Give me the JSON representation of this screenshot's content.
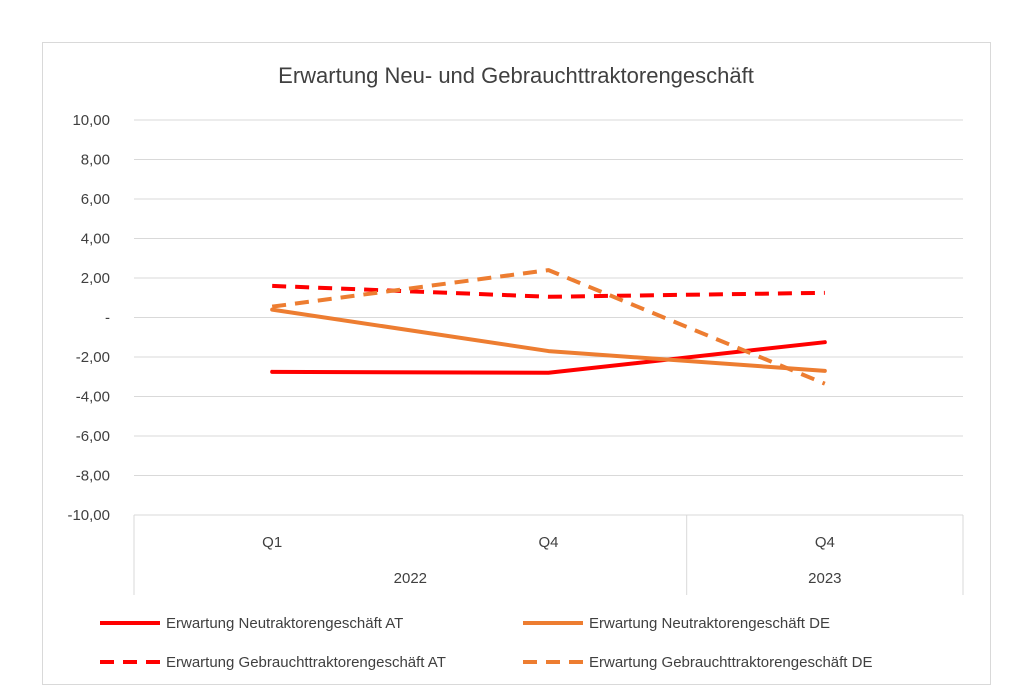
{
  "chart_data": {
    "type": "line",
    "title": "Erwartung Neu- und Gebrauchttraktorengeschäft",
    "categories": [
      {
        "label": "Q1",
        "group": "2022"
      },
      {
        "label": "Q4",
        "group": "2022"
      },
      {
        "label": "Q4",
        "group": "2023"
      }
    ],
    "groups": [
      "2022",
      "2023"
    ],
    "ylim": [
      -10,
      10
    ],
    "yticks": [
      10,
      8,
      6,
      4,
      2,
      0,
      -2,
      -4,
      -6,
      -8,
      -10
    ],
    "ytick_labels": [
      "10,00",
      "8,00",
      "6,00",
      "4,00",
      "2,00",
      "-",
      "-2,00",
      "-4,00",
      "-6,00",
      "-8,00",
      "-10,00"
    ],
    "grid": true,
    "legend_position": "bottom",
    "series": [
      {
        "name": "Erwartung Neutraktorengeschäft AT",
        "values": [
          -2.75,
          -2.8,
          -1.25
        ],
        "color": "#ff0000",
        "dashed": false
      },
      {
        "name": "Erwartung Neutraktorengeschäft DE",
        "values": [
          0.4,
          -1.7,
          -2.7
        ],
        "color": "#ed7d31",
        "dashed": false
      },
      {
        "name": "Erwartung Gebrauchttraktorengeschäft AT",
        "values": [
          1.6,
          1.05,
          1.25
        ],
        "color": "#ff0000",
        "dashed": true
      },
      {
        "name": "Erwartung Gebrauchttraktorengeschäft DE",
        "values": [
          0.55,
          2.4,
          -3.35
        ],
        "color": "#ed7d31",
        "dashed": true
      }
    ]
  }
}
